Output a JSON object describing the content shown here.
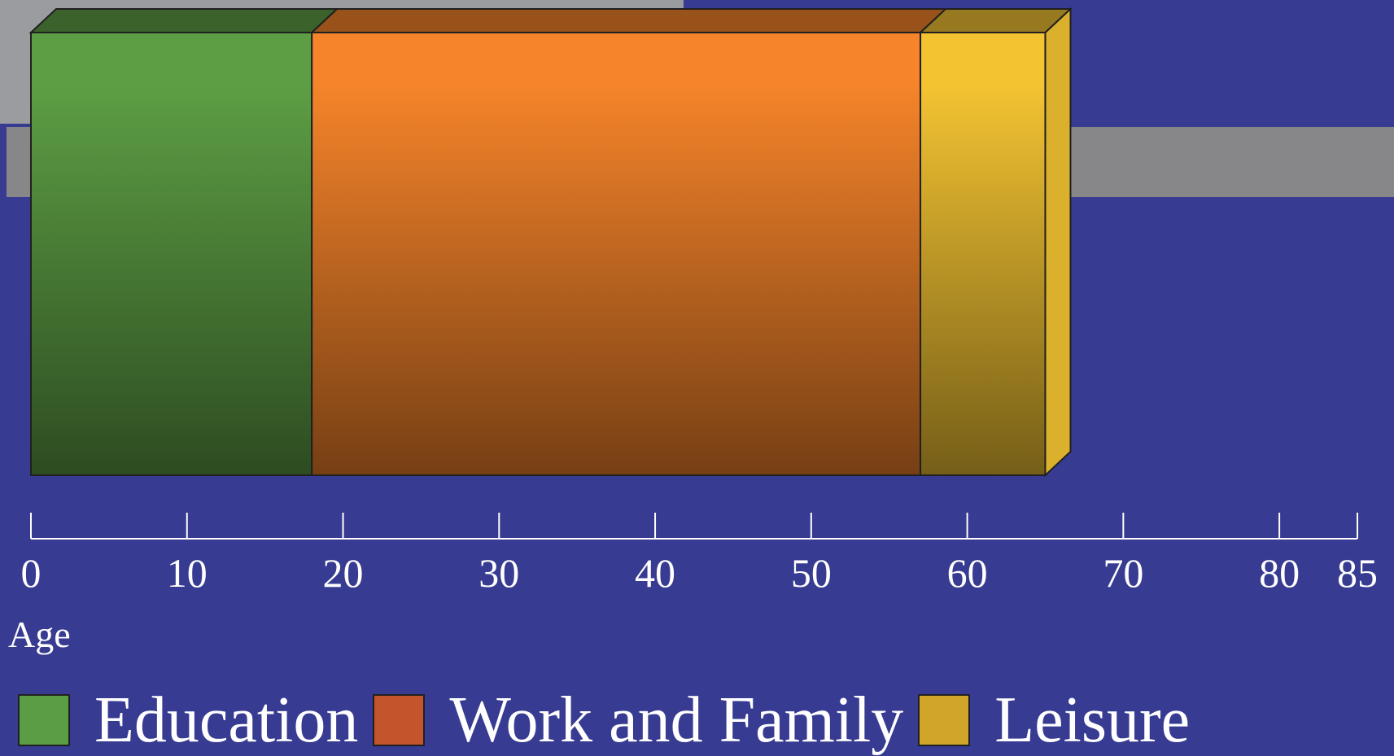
{
  "chart_data": {
    "type": "bar",
    "orientation": "horizontal-stacked",
    "segments": [
      {
        "name": "Education",
        "start": 0,
        "end": 18,
        "color": "#5d9e44"
      },
      {
        "name": "Work and Family",
        "start": 18,
        "end": 57,
        "color": "#f5842a"
      },
      {
        "name": "Leisure",
        "start": 57,
        "end": 65,
        "color": "#f3c332"
      }
    ],
    "xticks": [
      0,
      10,
      20,
      30,
      40,
      50,
      60,
      70,
      80,
      85
    ],
    "xlim": [
      0,
      85
    ],
    "xlabel": "Age",
    "legend_position": "bottom"
  },
  "legend": {
    "items": [
      {
        "label": "Education",
        "color": "#5b9d44"
      },
      {
        "label": "Work and Family",
        "color": "#c4542c"
      },
      {
        "label": "Leisure",
        "color": "#cfa62a"
      }
    ]
  },
  "colors": {
    "background": "#373b91",
    "band": "#87878a",
    "axis": "#ffffff"
  }
}
